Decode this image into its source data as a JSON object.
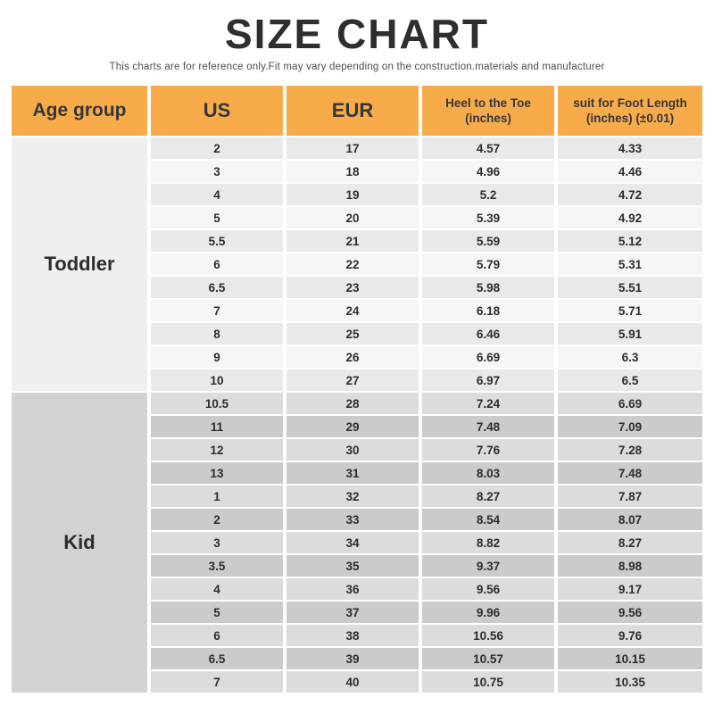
{
  "page": {
    "title": "SIZE CHART",
    "subtitle": "This charts are for reference only.Fit may vary depending on the construction.materials and manufacturer"
  },
  "colors": {
    "header_bg": "#F7AC49",
    "header_text": "#35353A",
    "title_text": "#2E2E31",
    "subtitle_text": "#4C4C4C",
    "cell_text": "#2D2D30",
    "toddler_group_bg": "#EFEFEF",
    "toddler_row_odd": "#E9E9E9",
    "toddler_row_even": "#F6F6F6",
    "kid_group_bg": "#D2D2D2",
    "kid_row_odd": "#DCDCDC",
    "kid_row_even": "#CBCBCB"
  },
  "chart_data": {
    "type": "table",
    "title": "SIZE CHART",
    "columns": [
      {
        "key": "age-group",
        "lines": [
          "Age group"
        ]
      },
      {
        "key": "us",
        "lines": [
          "US"
        ]
      },
      {
        "key": "eur",
        "lines": [
          "EUR"
        ]
      },
      {
        "key": "heel-to-toe",
        "lines": [
          "Heel to the Toe",
          "(inches)"
        ]
      },
      {
        "key": "foot-length",
        "lines": [
          "suit for Foot Length",
          "(inches)  (±0.01)"
        ]
      }
    ],
    "groups": [
      {
        "key": "toddler",
        "label": "Toddler",
        "rows": [
          [
            "2",
            "17",
            "4.57",
            "4.33"
          ],
          [
            "3",
            "18",
            "4.96",
            "4.46"
          ],
          [
            "4",
            "19",
            "5.2",
            "4.72"
          ],
          [
            "5",
            "20",
            "5.39",
            "4.92"
          ],
          [
            "5.5",
            "21",
            "5.59",
            "5.12"
          ],
          [
            "6",
            "22",
            "5.79",
            "5.31"
          ],
          [
            "6.5",
            "23",
            "5.98",
            "5.51"
          ],
          [
            "7",
            "24",
            "6.18",
            "5.71"
          ],
          [
            "8",
            "25",
            "6.46",
            "5.91"
          ],
          [
            "9",
            "26",
            "6.69",
            "6.3"
          ],
          [
            "10",
            "27",
            "6.97",
            "6.5"
          ]
        ]
      },
      {
        "key": "kid",
        "label": "Kid",
        "rows": [
          [
            "10.5",
            "28",
            "7.24",
            "6.69"
          ],
          [
            "11",
            "29",
            "7.48",
            "7.09"
          ],
          [
            "12",
            "30",
            "7.76",
            "7.28"
          ],
          [
            "13",
            "31",
            "8.03",
            "7.48"
          ],
          [
            "1",
            "32",
            "8.27",
            "7.87"
          ],
          [
            "2",
            "33",
            "8.54",
            "8.07"
          ],
          [
            "3",
            "34",
            "8.82",
            "8.27"
          ],
          [
            "3.5",
            "35",
            "9.37",
            "8.98"
          ],
          [
            "4",
            "36",
            "9.56",
            "9.17"
          ],
          [
            "5",
            "37",
            "9.96",
            "9.56"
          ],
          [
            "6",
            "38",
            "10.56",
            "9.76"
          ],
          [
            "6.5",
            "39",
            "10.57",
            "10.15"
          ],
          [
            "7",
            "40",
            "10.75",
            "10.35"
          ]
        ]
      }
    ]
  }
}
